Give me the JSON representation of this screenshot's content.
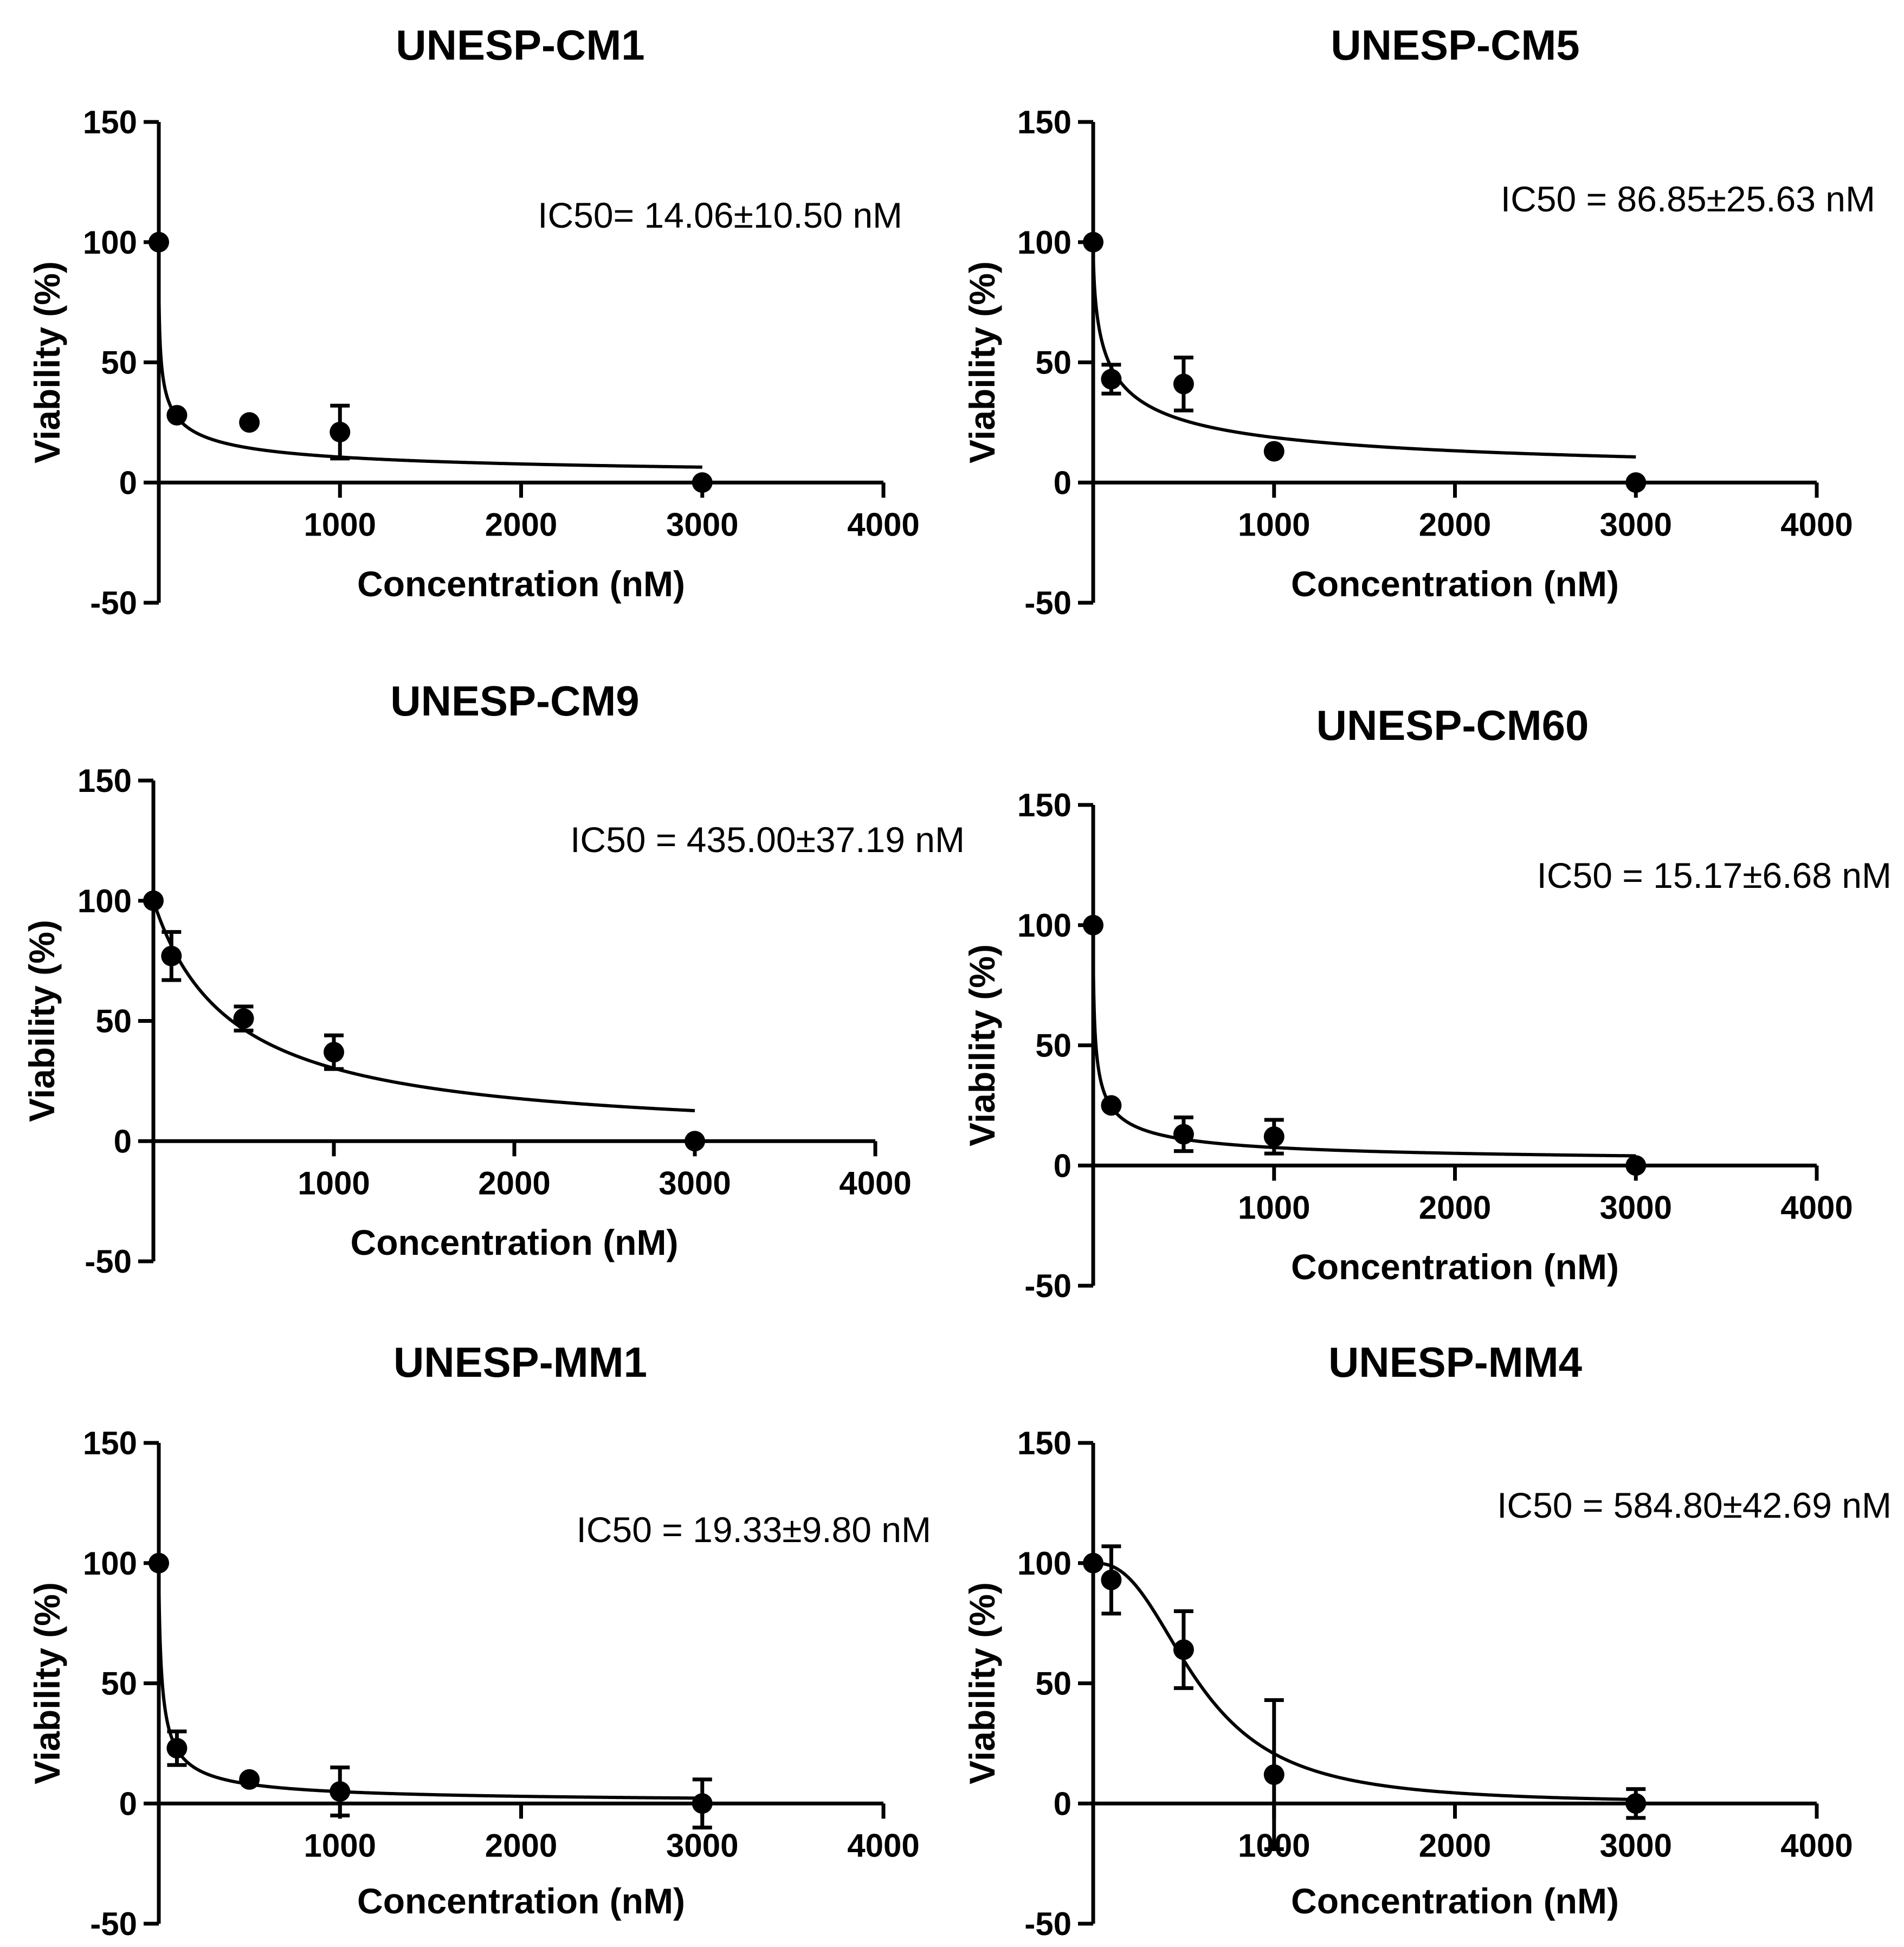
{
  "chart_data": [
    {
      "type": "scatter",
      "title": "UNESP-CM1",
      "xlabel": "Concentration (nM)",
      "ylabel": "Viability (%)",
      "xlim": [
        0,
        4000
      ],
      "ylim": [
        -50,
        150
      ],
      "xticks": [
        "1000",
        "2000",
        "3000",
        "4000"
      ],
      "yticks": [
        "150",
        "100",
        "50",
        "0",
        "-50"
      ],
      "annotation": "IC50= 14.06±10.50 nM",
      "x": [
        0,
        100,
        500,
        1000,
        3000
      ],
      "y": [
        100,
        28,
        25,
        21,
        0
      ],
      "err": [
        0,
        0,
        0,
        11,
        0
      ],
      "fit": {
        "model": "hill",
        "ic50": 14.06,
        "hill": 0.5,
        "top": 100,
        "bottom": 0,
        "xmax": 3000
      }
    },
    {
      "type": "scatter",
      "title": "UNESP-CM5",
      "xlabel": "Concentration (nM)",
      "ylabel": "Viability (%)",
      "xlim": [
        0,
        4000
      ],
      "ylim": [
        -50,
        150
      ],
      "xticks": [
        "1000",
        "2000",
        "3000",
        "4000"
      ],
      "yticks": [
        "150",
        "100",
        "50",
        "0",
        "-50"
      ],
      "annotation": "IC50 = 86.85±25.63 nM",
      "x": [
        0,
        100,
        500,
        1000,
        3000
      ],
      "y": [
        100,
        43,
        41,
        13,
        0
      ],
      "err": [
        0,
        6,
        11,
        0,
        0
      ],
      "fit": {
        "model": "hill",
        "ic50": 86.85,
        "hill": 0.6,
        "top": 100,
        "bottom": 0,
        "xmax": 3000
      }
    },
    {
      "type": "scatter",
      "title": "UNESP-CM9",
      "xlabel": "Concentration (nM)",
      "ylabel": "Viability (%)",
      "xlim": [
        0,
        4000
      ],
      "ylim": [
        -50,
        150
      ],
      "xticks": [
        "1000",
        "2000",
        "3000",
        "4000"
      ],
      "yticks": [
        "150",
        "100",
        "50",
        "0",
        "-50"
      ],
      "annotation": "IC50 = 435.00±37.19 nM",
      "x": [
        0,
        100,
        500,
        1000,
        3000
      ],
      "y": [
        100,
        77,
        51,
        37,
        0
      ],
      "err": [
        0,
        10,
        5,
        7,
        0
      ],
      "fit": {
        "model": "hill",
        "ic50": 435,
        "hill": 1.0,
        "top": 100,
        "bottom": 0,
        "xmax": 3000
      }
    },
    {
      "type": "scatter",
      "title": "UNESP-CM60",
      "xlabel": "Concentration (nM)",
      "ylabel": "Viability (%)",
      "xlim": [
        0,
        4000
      ],
      "ylim": [
        -50,
        150
      ],
      "xticks": [
        "1000",
        "2000",
        "3000",
        "4000"
      ],
      "yticks": [
        "150",
        "100",
        "50",
        "0",
        "-50"
      ],
      "annotation": "IC50 = 15.17±6.68 nM",
      "x": [
        0,
        100,
        500,
        1000,
        3000
      ],
      "y": [
        100,
        25,
        13,
        12,
        0
      ],
      "err": [
        0,
        0,
        7,
        7,
        0
      ],
      "fit": {
        "model": "hill",
        "ic50": 15.17,
        "hill": 0.6,
        "top": 100,
        "bottom": 0,
        "xmax": 3000
      }
    },
    {
      "type": "scatter",
      "title": "UNESP-MM1",
      "xlabel": "Concentration (nM)",
      "ylabel": "Viability (%)",
      "xlim": [
        0,
        4000
      ],
      "ylim": [
        -50,
        150
      ],
      "xticks": [
        "1000",
        "2000",
        "3000",
        "4000"
      ],
      "yticks": [
        "150",
        "100",
        "50",
        "0",
        "-50"
      ],
      "annotation": "IC50 = 19.33±9.80 nM",
      "x": [
        0,
        100,
        500,
        1000,
        3000
      ],
      "y": [
        100,
        23,
        10,
        5,
        0
      ],
      "err": [
        0,
        7,
        0,
        10,
        10
      ],
      "fit": {
        "model": "hill",
        "ic50": 19.33,
        "hill": 0.75,
        "top": 100,
        "bottom": 0,
        "xmax": 3000
      }
    },
    {
      "type": "scatter",
      "title": "UNESP-MM4",
      "xlabel": "Concentration (nM)",
      "ylabel": "Viability (%)",
      "xlim": [
        0,
        4000
      ],
      "ylim": [
        -50,
        150
      ],
      "xticks": [
        "1000",
        "2000",
        "3000",
        "4000"
      ],
      "yticks": [
        "150",
        "100",
        "50",
        "0",
        "-50"
      ],
      "annotation": "IC50 = 584.80±42.69 nM",
      "x": [
        0,
        100,
        500,
        1000,
        3000
      ],
      "y": [
        100,
        93,
        64,
        12,
        0
      ],
      "err": [
        0,
        14,
        16,
        31,
        6
      ],
      "fit": {
        "model": "hill",
        "ic50": 584.8,
        "hill": 2.5,
        "top": 100,
        "bottom": 0,
        "xmax": 3000
      }
    }
  ]
}
